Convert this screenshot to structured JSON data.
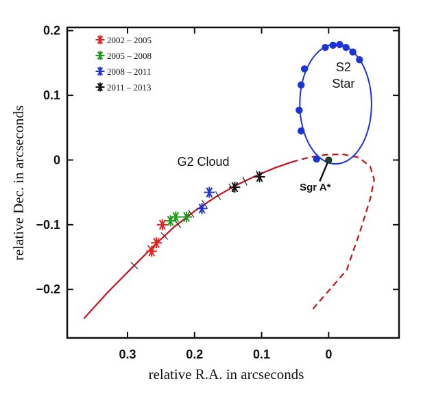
{
  "chart_data": {
    "type": "scatter",
    "xlabel": "relative R.A. in arcseconds",
    "ylabel": "relative Dec. in arcseconds",
    "xlim": [
      0.39,
      -0.105
    ],
    "ylim": [
      -0.275,
      0.205
    ],
    "x_reversed": true,
    "x_ticks": [
      {
        "value": 0.3,
        "label": "0.3"
      },
      {
        "value": 0.2,
        "label": "0.2"
      },
      {
        "value": 0.1,
        "label": "0.1"
      },
      {
        "value": 0.0,
        "label": "0"
      }
    ],
    "y_ticks": [
      {
        "value": 0.2,
        "label": "0.2"
      },
      {
        "value": 0.1,
        "label": "0.1"
      },
      {
        "value": 0.0,
        "label": "0"
      },
      {
        "value": -0.1,
        "label": "−0.1"
      },
      {
        "value": -0.2,
        "label": "−0.2"
      }
    ],
    "legend_position": "top-left",
    "series": [
      {
        "name": "2002 – 2005",
        "color": "#e8201e",
        "marker": "asterisk",
        "points": [
          [
            0.264,
            -0.141
          ],
          [
            0.257,
            -0.128
          ],
          [
            0.248,
            -0.1
          ]
        ]
      },
      {
        "name": "2005 – 2008",
        "color": "#1a9a1a",
        "marker": "asterisk",
        "points": [
          [
            0.236,
            -0.094
          ],
          [
            0.228,
            -0.088
          ],
          [
            0.212,
            -0.088
          ]
        ]
      },
      {
        "name": "2008 – 2011",
        "color": "#1c33d9",
        "marker": "asterisk",
        "points": [
          [
            0.189,
            -0.075
          ],
          [
            0.178,
            -0.05
          ]
        ]
      },
      {
        "name": "2011 – 2013",
        "color": "#111111",
        "marker": "asterisk",
        "points": [
          [
            0.14,
            -0.042
          ],
          [
            0.103,
            -0.026
          ]
        ]
      }
    ],
    "g2_orbit": {
      "color": "#c8101a",
      "solid": [
        [
          0.365,
          -0.245
        ],
        [
          0.33,
          -0.205
        ],
        [
          0.29,
          -0.163
        ],
        [
          0.26,
          -0.132
        ],
        [
          0.23,
          -0.103
        ],
        [
          0.2,
          -0.079
        ],
        [
          0.17,
          -0.058
        ],
        [
          0.14,
          -0.04
        ],
        [
          0.11,
          -0.025
        ],
        [
          0.08,
          -0.012
        ],
        [
          0.055,
          -0.003
        ]
      ],
      "dashed": [
        [
          0.055,
          -0.003
        ],
        [
          0.03,
          0.004
        ],
        [
          0.005,
          0.008
        ],
        [
          -0.02,
          0.009
        ],
        [
          -0.045,
          0.004
        ],
        [
          -0.062,
          -0.01
        ],
        [
          -0.068,
          -0.03
        ],
        [
          -0.062,
          -0.06
        ],
        [
          -0.047,
          -0.11
        ],
        [
          -0.027,
          -0.17
        ],
        [
          0.025,
          -0.232
        ]
      ],
      "tick_marks_x": [
        0.29,
        0.265,
        0.245,
        0.225,
        0.205,
        0.185,
        0.165,
        0.145,
        0.125,
        0.105
      ]
    },
    "s2_orbit": {
      "color": "#1c33d9",
      "center": [
        -0.0105,
        0.0865
      ],
      "rx": 0.0535,
      "ry": 0.0925,
      "points": [
        [
          -0.0165,
          0.1785
        ],
        [
          -0.0065,
          0.1775
        ],
        [
          0.005,
          0.174
        ],
        [
          -0.026,
          0.174
        ],
        [
          -0.036,
          0.167
        ],
        [
          -0.046,
          0.155
        ],
        [
          0.036,
          0.141
        ],
        [
          0.041,
          0.116
        ],
        [
          0.044,
          0.077
        ],
        [
          0.041,
          0.045
        ],
        [
          0.018,
          0.0015
        ]
      ]
    },
    "sgr_a": {
      "x": 0.0,
      "y": 0.0,
      "color": "#1f4a1f"
    },
    "annotations": [
      {
        "key": "g2",
        "text": "G2 Cloud",
        "x": 0.187,
        "y": -0.009
      },
      {
        "key": "s2a",
        "text": "S2",
        "x": -0.022,
        "y": 0.137
      },
      {
        "key": "s2b",
        "text": "Star",
        "x": -0.022,
        "y": 0.112
      },
      {
        "key": "sgra",
        "text": "Sgr A*",
        "x": 0.02,
        "y": -0.047
      }
    ]
  }
}
